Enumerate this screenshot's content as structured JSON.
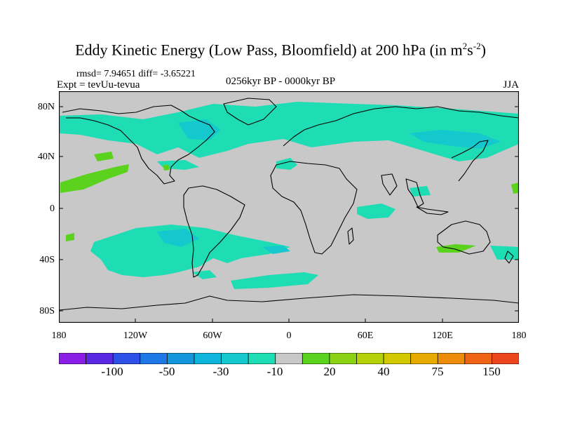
{
  "title_main": "Eddy Kinetic Energy (Low Pass, Bloomfield) at 200 hPa (in m",
  "title_sup1": "2",
  "title_mid": "s",
  "title_sup2": "-2",
  "title_end": ")",
  "stats": "rmsd= 7.94651 diff= -3.65221",
  "expt": "Expt = tevUu-tevua",
  "period": "0256kyr BP - 0000kyr BP",
  "season": "JJA",
  "lat_labels": [
    "80N",
    "40N",
    "0",
    "40S",
    "80S"
  ],
  "lon_labels": [
    "180",
    "120W",
    "60W",
    "0",
    "60E",
    "120E",
    "180"
  ],
  "colorbar": {
    "colors": [
      "#8a1ee6",
      "#5a28e0",
      "#2d50e6",
      "#1e78e6",
      "#1496dc",
      "#0fb4dc",
      "#14c8cd",
      "#1edcb4",
      "#c8c8c8",
      "#5ad21e",
      "#8cd214",
      "#b4d20a",
      "#d2c800",
      "#e6aa00",
      "#ec8c0a",
      "#ee6414",
      "#eb461e"
    ],
    "labels": [
      "-100",
      "-50",
      "-30",
      "-10",
      "20",
      "40",
      "75",
      "150"
    ]
  },
  "field_colors": {
    "ocean_land": "#c8c8c8",
    "neg_light": "#1edcb4",
    "neg_medium": "#14c8cd",
    "pos_light": "#5ad21e"
  }
}
